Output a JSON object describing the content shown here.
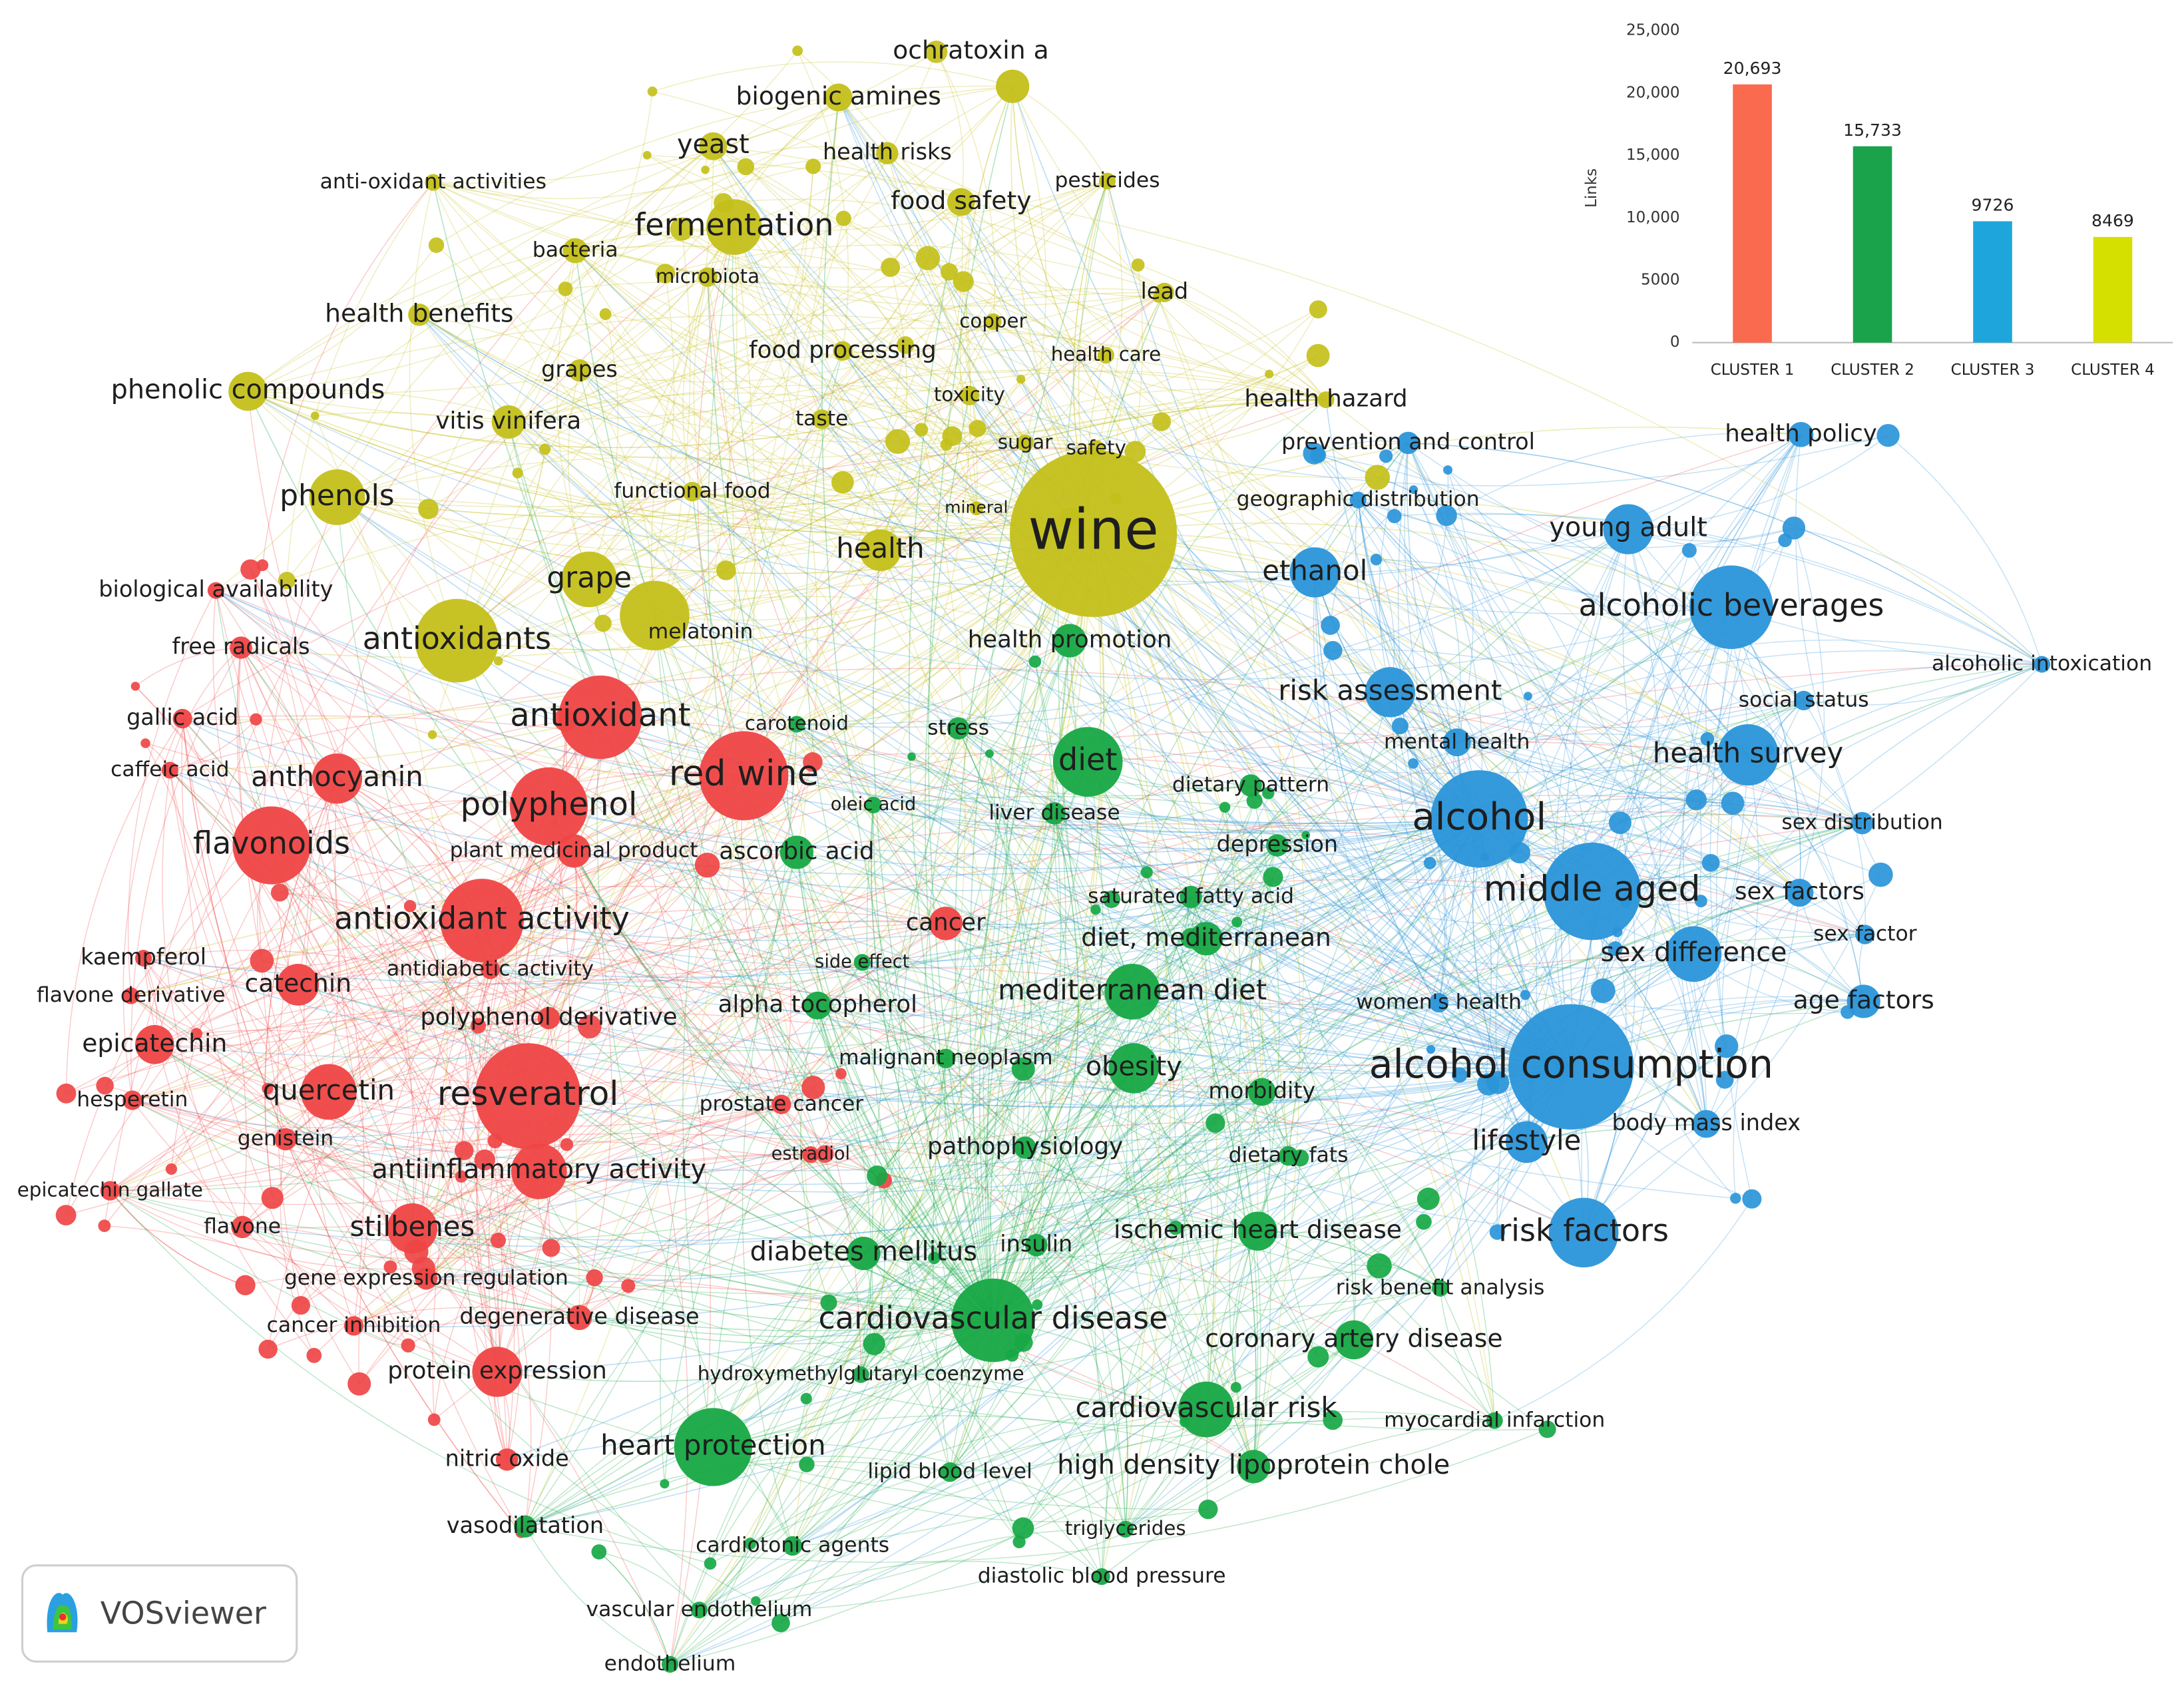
{
  "chart_data": {
    "type": "bar",
    "y_label": "Links",
    "categories": [
      "CLUSTER 1",
      "CLUSTER 2",
      "CLUSTER 3",
      "CLUSTER 4"
    ],
    "values": [
      20693,
      15733,
      9726,
      8469
    ],
    "value_labels": [
      "20,693",
      "15,733",
      "9726",
      "8469"
    ],
    "colors": [
      "#f96a4f",
      "#1aa34a",
      "#1ea6dc",
      "#d6e000"
    ],
    "ylim": [
      0,
      25000
    ],
    "yticks": [
      0,
      5000,
      {
        "value": 10000,
        "label": "10,000"
      },
      {
        "value": 15000,
        "label": "15,000"
      },
      {
        "value": 20000,
        "label": "20,000"
      },
      {
        "value": 25000,
        "label": "25,000"
      }
    ]
  },
  "network": {
    "logo": "VOSviewer",
    "clusters": [
      {
        "color": "#ef4545",
        "nodes": [
          "biological availability",
          "free radicals",
          "gallic acid",
          "antioxidant",
          "caffeic acid",
          "anthocyanin",
          "red wine",
          "polyphenol",
          "flavonoids",
          "plant medicinal product",
          "antioxidant activity",
          "cancer",
          "kaempferol",
          "antidiabetic activity",
          "flavone derivative",
          "catechin",
          "polyphenol derivative",
          "epicatechin",
          "quercetin",
          "resveratrol",
          "hesperetin",
          "prostate cancer",
          "genistein",
          "estradiol",
          "antiinflammatory activity",
          "epicatechin gallate",
          "flavone",
          "stilbenes",
          "gene expression regulation",
          "cancer inhibition",
          "degenerative disease",
          "protein expression",
          "nitric oxide"
        ]
      },
      {
        "color": "#17a845",
        "nodes": [
          "health promotion",
          "carotenoid",
          "stress",
          "diet",
          "oleic acid",
          "liver disease",
          "dietary pattern",
          "depression",
          "saturated fatty acid",
          "ascorbic acid",
          "side effect",
          "diet, mediterranean",
          "mediterranean diet",
          "alpha tocopherol",
          "malignant neoplasm",
          "obesity",
          "morbidity",
          "pathophysiology",
          "dietary fats",
          "insulin",
          "ischemic heart disease",
          "diabetes mellitus",
          "cardiovascular disease",
          "risk benefit analysis",
          "coronary artery disease",
          "hydroxymethylglutaryl coenzyme",
          "cardiovascular risk",
          "myocardial infarction",
          "heart protection",
          "lipid blood level",
          "high density lipoprotein chole",
          "triglycerides",
          "diastolic blood pressure",
          "vasodilatation",
          "cardiotonic agents",
          "vascular endothelium",
          "endothelium"
        ]
      },
      {
        "color": "#2a95d9",
        "nodes": [
          "prevention and control",
          "health policy",
          "geographic distribution",
          "young adult",
          "ethanol",
          "alcoholic beverages",
          "alcoholic intoxication",
          "risk assessment",
          "social status",
          "mental health",
          "health survey",
          "alcohol",
          "sex distribution",
          "middle aged",
          "sex factors",
          "sex factor",
          "sex difference",
          "age factors",
          "alcohol consumption",
          "body mass index",
          "lifestyle",
          "risk factors",
          "women's health"
        ]
      },
      {
        "color": "#c4c01a",
        "nodes": [
          "wine",
          "ochratoxin a",
          "biogenic amines",
          "yeast",
          "health risks",
          "pesticides",
          "anti-oxidant activities",
          "food safety",
          "fermentation",
          "bacteria",
          "microbiota",
          "health benefits",
          "lead",
          "copper",
          "food processing",
          "health care",
          "grapes",
          "phenolic compounds",
          "toxicity",
          "health hazard",
          "vitis vinifera",
          "taste",
          "sugar",
          "safety",
          "functional food",
          "phenols",
          "mineral",
          "health",
          "grape",
          "antioxidants",
          "melatonin"
        ]
      }
    ]
  }
}
